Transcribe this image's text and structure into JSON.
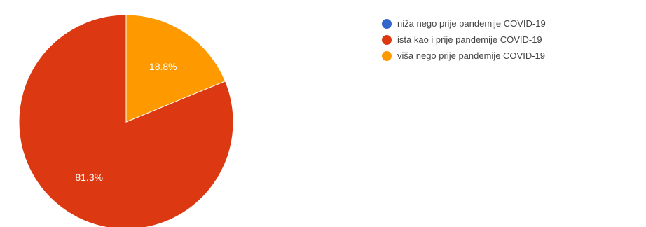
{
  "chart_data": {
    "type": "pie",
    "title": "",
    "legend_position": "right",
    "slices": [
      {
        "label": "niža nego prije pandemije COVID-19",
        "value": 0,
        "display": "",
        "color": "#3366cc"
      },
      {
        "label": "ista kao i prije pandemije COVID-19",
        "value": 81.3,
        "display": "81.3%",
        "color": "#dc3912"
      },
      {
        "label": "viša nego prije pandemije COVID-19",
        "value": 18.8,
        "display": "18.8%",
        "color": "#ff9900"
      }
    ]
  }
}
